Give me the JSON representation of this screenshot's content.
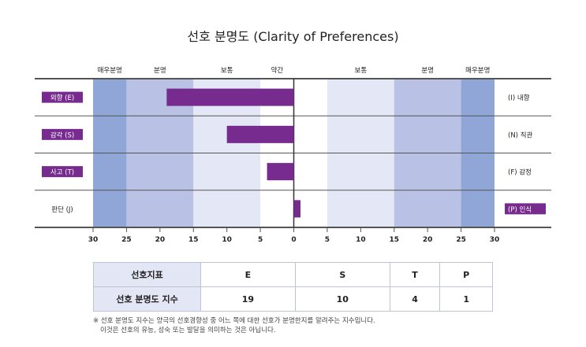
{
  "title": "선호 분명도 (Clarity of Preferences)",
  "chart_data": {
    "type": "bar",
    "orientation": "horizontal-diverging",
    "title": "선호 분명도 (Clarity of Preferences)",
    "xlim": [
      -30,
      30
    ],
    "x_ticks": [
      "30",
      "25",
      "20",
      "15",
      "10",
      "5",
      "0",
      "5",
      "10",
      "15",
      "20",
      "25",
      "30"
    ],
    "bands_left": [
      {
        "label": "매우분명",
        "from": -30,
        "to": -25,
        "color": "#8fa6d6"
      },
      {
        "label": "분명",
        "from": -25,
        "to": -15,
        "color": "#b9c1e4"
      },
      {
        "label": "보통",
        "from": -15,
        "to": -5,
        "color": "#e4e7f6"
      },
      {
        "label": "약간",
        "from": -5,
        "to": 0,
        "color": "#ffffff"
      }
    ],
    "bands_right": [
      {
        "label": "",
        "from": 0,
        "to": 5,
        "color": "#ffffff"
      },
      {
        "label": "보통",
        "from": 5,
        "to": 15,
        "color": "#e4e7f6"
      },
      {
        "label": "분명",
        "from": 15,
        "to": 25,
        "color": "#b9c1e4"
      },
      {
        "label": "매우분명",
        "from": 25,
        "to": 30,
        "color": "#8fa6d6"
      }
    ],
    "rows": [
      {
        "left_label": "외향 (E)",
        "right_label": "(I) 내향",
        "value": -19,
        "highlight": "left"
      },
      {
        "left_label": "감각 (S)",
        "right_label": "(N) 직관",
        "value": -10,
        "highlight": "left"
      },
      {
        "left_label": "사고 (T)",
        "right_label": "(F) 감정",
        "value": -4,
        "highlight": "left"
      },
      {
        "left_label": "판단 (J)",
        "right_label": "(P) 인식",
        "value": 1,
        "highlight": "right"
      }
    ],
    "bar_color": "#772b8e"
  },
  "table": {
    "row1_label": "선호지표",
    "row2_label": "선호 분명도 지수",
    "letters": [
      "E",
      "S",
      "T",
      "P"
    ],
    "scores": [
      "19",
      "10",
      "4",
      "1"
    ]
  },
  "note": {
    "line1": "※ 선호 분명도 지수는 양극의 선호경향성 중 어느 쪽에 대한 선호가 분명한지를 알려주는 지수입니다.",
    "line2": "이것은 선호의 유능, 성숙 또는 발달을 의미하는 것은 아닙니다."
  }
}
